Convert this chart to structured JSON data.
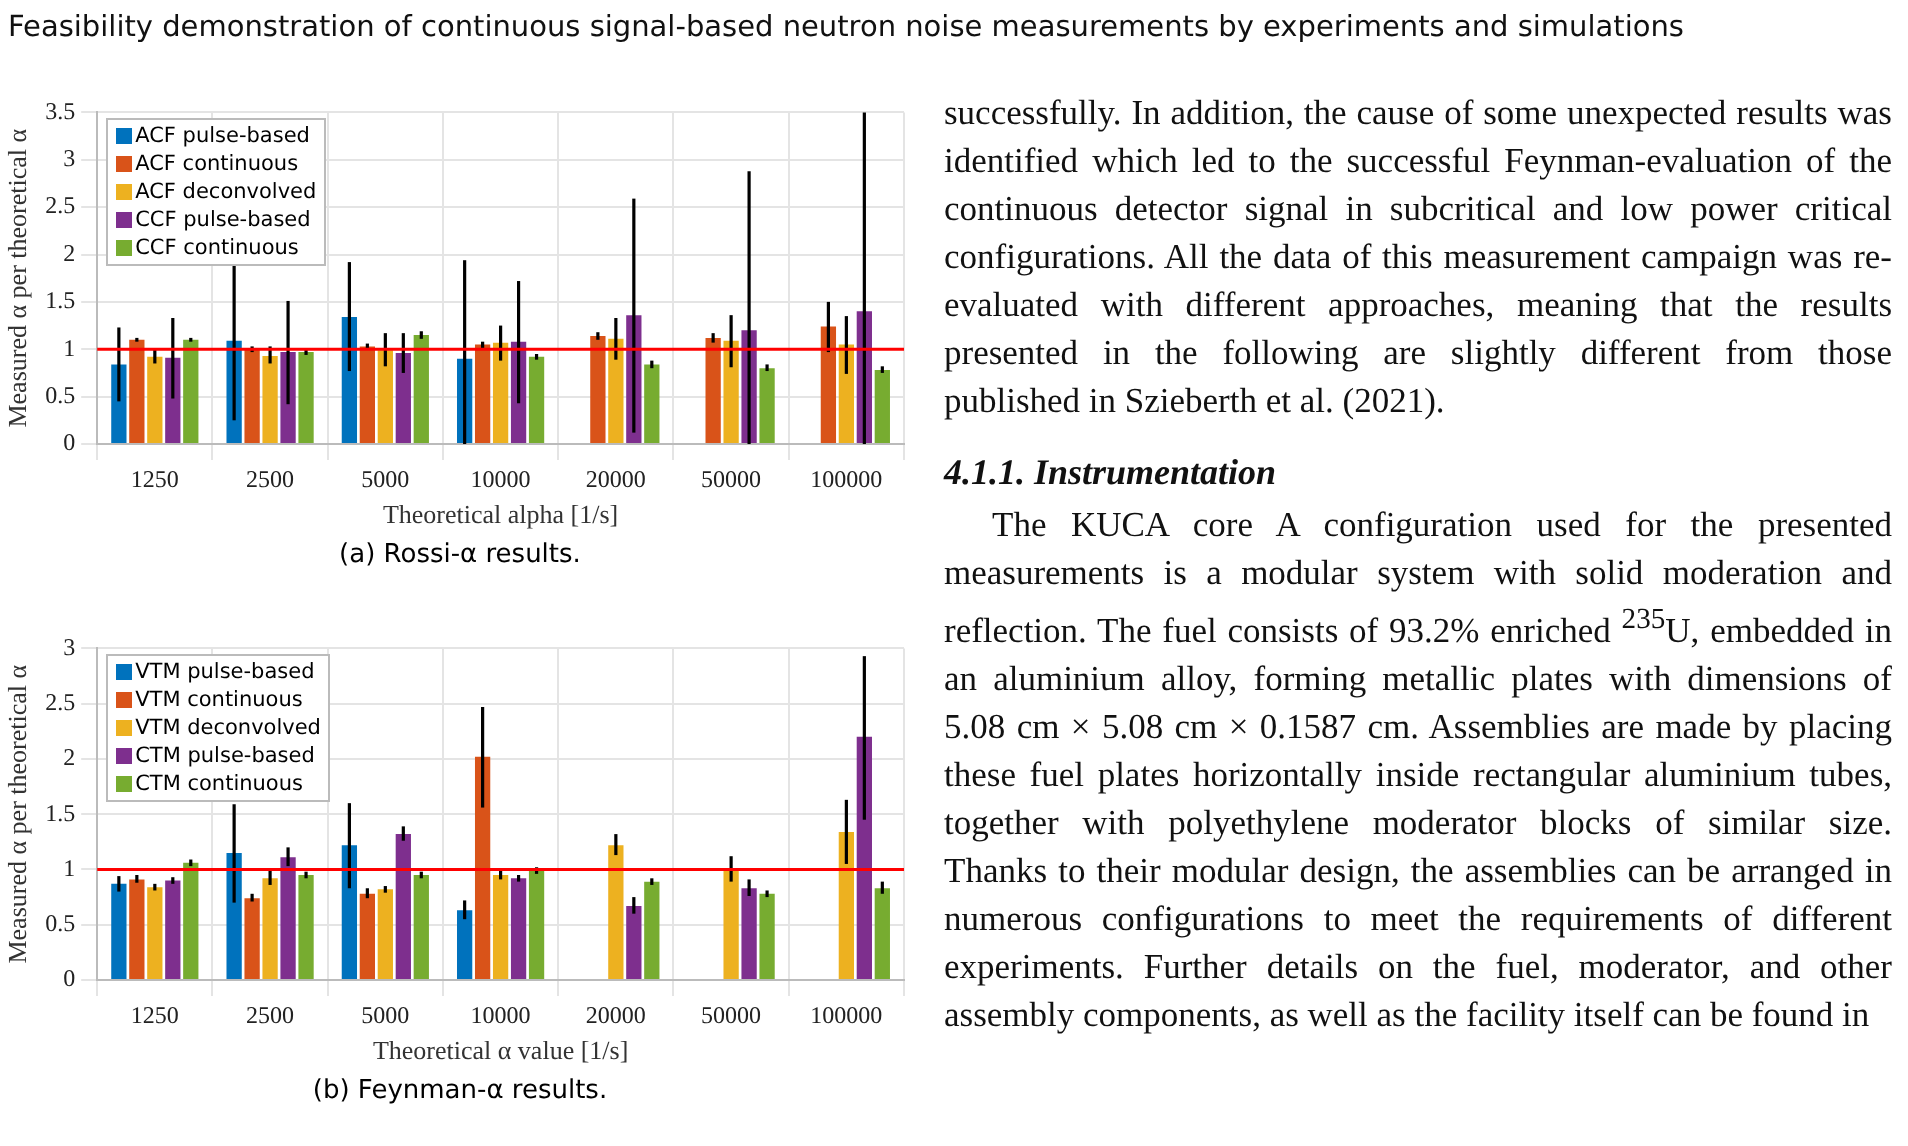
{
  "chart_data": [
    {
      "type": "bar",
      "title": "Feasibility demonstration of continuous signal-based neutron noise measurements by experiments and simulations",
      "xlabel": "Theoretical alpha [1/s]",
      "ylabel": "Measured α per theoretical α",
      "categories": [
        "1250",
        "2500",
        "5000",
        "10000",
        "20000",
        "50000",
        "100000"
      ],
      "series": [
        {
          "name": "ACF pulse-based",
          "color": "#0072bd",
          "values": [
            0.84,
            1.09,
            1.34,
            0.9,
            null,
            null,
            null
          ],
          "errors": [
            [
              0.45,
              1.23
            ],
            [
              0.25,
              1.95
            ],
            [
              0.77,
              1.92
            ],
            [
              0,
              1.94
            ],
            null,
            null,
            null
          ]
        },
        {
          "name": "ACF continuous",
          "color": "#d95319",
          "values": [
            1.1,
            1.0,
            1.03,
            1.05,
            1.14,
            1.12,
            1.24
          ],
          "errors": [
            [
              1.08,
              1.12
            ],
            [
              0.97,
              1.03
            ],
            [
              1.0,
              1.06
            ],
            [
              1.01,
              1.08
            ],
            [
              1.1,
              1.18
            ],
            [
              1.07,
              1.17
            ],
            [
              0.97,
              1.5
            ]
          ]
        },
        {
          "name": "ACF deconvolved",
          "color": "#edb120",
          "values": [
            0.92,
            0.93,
            0.99,
            1.07,
            1.11,
            1.09,
            1.05
          ],
          "errors": [
            [
              0.85,
              1.0
            ],
            [
              0.85,
              1.03
            ],
            [
              0.82,
              1.17
            ],
            [
              0.88,
              1.25
            ],
            [
              0.89,
              1.33
            ],
            [
              0.81,
              1.36
            ],
            [
              0.74,
              1.35
            ]
          ]
        },
        {
          "name": "CCF pulse-based",
          "color": "#7e2f8e",
          "values": [
            0.91,
            0.97,
            0.96,
            1.08,
            1.36,
            1.2,
            1.4
          ],
          "errors": [
            [
              0.48,
              1.33
            ],
            [
              0.42,
              1.51
            ],
            [
              0.75,
              1.17
            ],
            [
              0.43,
              1.72
            ],
            [
              0.12,
              2.59
            ],
            [
              0,
              2.88
            ],
            [
              0,
              3.5
            ]
          ]
        },
        {
          "name": "CCF continuous",
          "color": "#77ac30",
          "values": [
            1.1,
            0.97,
            1.15,
            0.92,
            0.84,
            0.8,
            0.78
          ],
          "errors": [
            [
              1.08,
              1.12
            ],
            [
              0.94,
              1.0
            ],
            [
              1.11,
              1.19
            ],
            [
              0.89,
              0.95
            ],
            [
              0.8,
              0.88
            ],
            [
              0.77,
              0.84
            ],
            [
              0.75,
              0.82
            ]
          ]
        }
      ],
      "ylim": [
        0,
        3.5
      ],
      "yticks": [
        0,
        0.5,
        1,
        1.5,
        2,
        2.5,
        3,
        3.5
      ],
      "grid": true,
      "legend": "top left",
      "ref_lines": [
        {
          "axis": "y",
          "value": 1,
          "color": "#ff0000"
        }
      ],
      "annotations": [
        "(a) Rossi-α results."
      ]
    },
    {
      "type": "bar",
      "xlabel": "Theoretical α value [1/s]",
      "ylabel": "Measured α per theoretical α",
      "categories": [
        "1250",
        "2500",
        "5000",
        "10000",
        "20000",
        "50000",
        "100000"
      ],
      "series": [
        {
          "name": "VTM pulse-based",
          "color": "#0072bd",
          "values": [
            0.87,
            1.15,
            1.22,
            0.63,
            null,
            null,
            null
          ],
          "errors": [
            [
              0.8,
              0.94
            ],
            [
              0.7,
              1.59
            ],
            [
              0.83,
              1.6
            ],
            [
              0.55,
              0.72
            ],
            null,
            null,
            null
          ]
        },
        {
          "name": "VTM continuous",
          "color": "#d95319",
          "values": [
            0.91,
            0.74,
            0.78,
            2.02,
            null,
            null,
            null
          ],
          "errors": [
            [
              0.88,
              0.95
            ],
            [
              0.71,
              0.78
            ],
            [
              0.74,
              0.83
            ],
            [
              1.56,
              2.47
            ],
            null,
            null,
            null
          ]
        },
        {
          "name": "VTM deconvolved",
          "color": "#edb120",
          "values": [
            0.84,
            0.92,
            0.82,
            0.95,
            1.22,
            1.0,
            1.34
          ],
          "errors": [
            [
              0.81,
              0.87
            ],
            [
              0.86,
              0.99
            ],
            [
              0.79,
              0.85
            ],
            [
              0.91,
              0.99
            ],
            [
              1.13,
              1.32
            ],
            [
              0.89,
              1.12
            ],
            [
              1.05,
              1.63
            ]
          ]
        },
        {
          "name": "CTM pulse-based",
          "color": "#7e2f8e",
          "values": [
            0.9,
            1.11,
            1.32,
            0.92,
            0.67,
            0.83,
            2.2
          ],
          "errors": [
            [
              0.87,
              0.93
            ],
            [
              1.03,
              1.2
            ],
            [
              1.26,
              1.39
            ],
            [
              0.89,
              0.95
            ],
            [
              0.6,
              0.75
            ],
            [
              0.76,
              0.91
            ],
            [
              1.45,
              2.93
            ]
          ]
        },
        {
          "name": "CTM continuous",
          "color": "#77ac30",
          "values": [
            1.06,
            0.95,
            0.95,
            0.99,
            0.89,
            0.78,
            0.83
          ],
          "errors": [
            [
              1.03,
              1.09
            ],
            [
              0.92,
              0.98
            ],
            [
              0.92,
              0.98
            ],
            [
              0.96,
              1.02
            ],
            [
              0.86,
              0.92
            ],
            [
              0.75,
              0.81
            ],
            [
              0.78,
              0.89
            ]
          ]
        }
      ],
      "ylim": [
        0,
        3
      ],
      "yticks": [
        0,
        0.5,
        1,
        1.5,
        2,
        2.5,
        3
      ],
      "grid": true,
      "legend": "top left",
      "ref_lines": [
        {
          "axis": "y",
          "value": 1,
          "color": "#ff0000"
        }
      ],
      "annotations": [
        "(b) Feynman-α results."
      ]
    },
    {
      "type": "other",
      "title": "4.1.1. Instrumentation",
      "annotations": [
        "successfully. In addition, the cause of some unexpected results was identified which led to the successful Feynman-evaluation of the continuous detector signal in subcritical and low power critical configurations. All the data of this measurement campaign was re-evaluated with different approaches, meaning that the results presented in the following are slightly different from those published in Szieberth et al. (2021).",
        "The KUCA core A configuration used for the presented measurements is a modular system with solid moderation and reflection. The fuel consists of 93.2% enriched $^{235}$U, embedded in an aluminium alloy, forming metallic plates with dimensions of 5.08 cm × 5.08 cm × 0.1587 cm. Assemblies are made by placing these fuel plates horizontally inside rectangular aluminium tubes, together with polyethylene moderator blocks of similar size. Thanks to their modular design, the assemblies can be arranged in numerous configurations to meet the requirements of different experiments. Further details on the fuel, moderator, and other assembly components, as well as the facility itself can be found in"
      ]
    }
  ]
}
